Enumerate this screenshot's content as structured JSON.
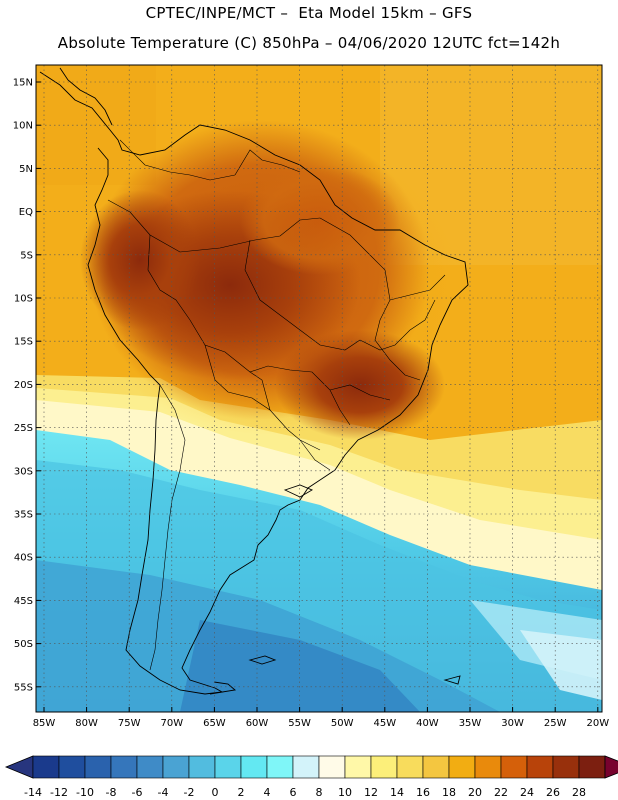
{
  "header": {
    "line1": "CPTEC/INPE/MCT –  Eta Model 15km – GFS",
    "line2": "Absolute Temperature (C) 850hPa – 04/06/2020 12UTC fct=142h"
  },
  "axes": {
    "lat_labels": [
      "15N",
      "10N",
      "5N",
      "EQ",
      "5S",
      "10S",
      "15S",
      "20S",
      "25S",
      "30S",
      "35S",
      "40S",
      "45S",
      "50S",
      "55S"
    ],
    "lon_labels": [
      "85W",
      "80W",
      "75W",
      "70W",
      "65W",
      "60W",
      "55W",
      "50W",
      "45W",
      "40W",
      "35W",
      "30W",
      "25W",
      "20W"
    ]
  },
  "colorbar": {
    "labels": [
      "-14",
      "-12",
      "-10",
      "-8",
      "-6",
      "-4",
      "-2",
      "0",
      "2",
      "4",
      "6",
      "8",
      "10",
      "12",
      "14",
      "16",
      "18",
      "20",
      "22",
      "24",
      "26",
      "28"
    ],
    "colors": [
      "#1a3a8c",
      "#1f4e9e",
      "#2a62ad",
      "#3576bb",
      "#3f8bc7",
      "#4aa3d3",
      "#52bcdf",
      "#5ad4ea",
      "#63e8f2",
      "#7ff6f8",
      "#d3f3fa",
      "#fffbe8",
      "#fff8a8",
      "#fcef7a",
      "#f8dc5c",
      "#f4c640",
      "#f2ad12",
      "#e98a0c",
      "#d5600a",
      "#b8430a",
      "#98300c",
      "#7c1f10"
    ],
    "under_color": "#27357e",
    "over_color": "#78022e"
  }
}
